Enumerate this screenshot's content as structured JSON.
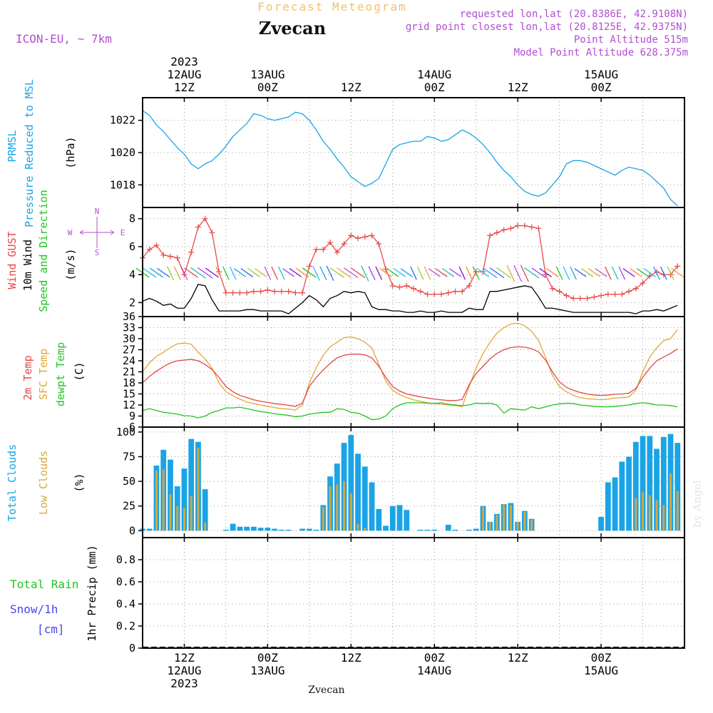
{
  "header": {
    "forecast_title": "Forecast Meteogram",
    "location": "Zvecan",
    "model": "ICON-EU, ~ 7km",
    "requested": "requested lon,lat (20.8386E, 42.9108N)",
    "grid_point": "grid point closest lon,lat (20.8125E, 42.9375N)",
    "point_altitude": "Point Altitude 515m",
    "model_altitude": "Model Point Altitude 628.375m",
    "watermark": "by Angel",
    "footer_location": "Zvecan"
  },
  "colors": {
    "pressure": "#1aa4e6",
    "gust": "#e84848",
    "wind": "#000000",
    "temp2m": "#e04848",
    "sfctemp": "#e0a838",
    "dewpt": "#22c422",
    "total_clouds": "#1aa4e6",
    "low_clouds": "#d4a840",
    "rain": "#22c422",
    "snow": "#4848e8",
    "meta": "#b050d0",
    "forecast_title": "#f0c070"
  },
  "time_axis": {
    "top_labels": [
      {
        "t": 12,
        "lines": [
          "2023",
          "12AUG",
          "12Z"
        ]
      },
      {
        "t": 24,
        "lines": [
          "13AUG",
          "00Z"
        ]
      },
      {
        "t": 36,
        "lines": [
          "12Z"
        ]
      },
      {
        "t": 48,
        "lines": [
          "14AUG",
          "00Z"
        ]
      },
      {
        "t": 60,
        "lines": [
          "12Z"
        ]
      },
      {
        "t": 72,
        "lines": [
          "15AUG",
          "00Z"
        ]
      }
    ],
    "bottom_labels": [
      {
        "t": 12,
        "lines": [
          "12Z",
          "12AUG",
          "2023"
        ]
      },
      {
        "t": 24,
        "lines": [
          "00Z",
          "13AUG"
        ]
      },
      {
        "t": 36,
        "lines": [
          "12Z"
        ]
      },
      {
        "t": 48,
        "lines": [
          "00Z",
          "14AUG"
        ]
      },
      {
        "t": 60,
        "lines": [
          "12Z"
        ]
      },
      {
        "t": 72,
        "lines": [
          "00Z",
          "15AUG"
        ]
      }
    ]
  },
  "chart_data": [
    {
      "type": "line",
      "name": "pressure",
      "label_lines": [
        "PRMSL",
        "Pressure Reduced to MSL"
      ],
      "ylabel": "(hPa)",
      "ylim": [
        1016.6,
        1023.4
      ],
      "yticks": [
        1018,
        1020,
        1022
      ],
      "x_hours_from_12AUG00Z": [
        6,
        7,
        8,
        9,
        10,
        11,
        12,
        13,
        14,
        15,
        16,
        17,
        18,
        19,
        20,
        21,
        22,
        23,
        24,
        25,
        26,
        27,
        28,
        29,
        30,
        31,
        32,
        33,
        34,
        35,
        36,
        37,
        38,
        39,
        40,
        41,
        42,
        43,
        44,
        45,
        46,
        47,
        48,
        49,
        50,
        51,
        52,
        53,
        54,
        55,
        56,
        57,
        58,
        59,
        60,
        61,
        62,
        63,
        64,
        65,
        66,
        67,
        68,
        69,
        70,
        71,
        72,
        73,
        74,
        75,
        76,
        77,
        78,
        79,
        80,
        81,
        82,
        83
      ],
      "values": [
        1022.6,
        1022.3,
        1021.7,
        1021.3,
        1020.8,
        1020.3,
        1019.9,
        1019.3,
        1019.0,
        1019.3,
        1019.5,
        1019.9,
        1020.4,
        1021.0,
        1021.4,
        1021.8,
        1022.4,
        1022.3,
        1022.1,
        1022.0,
        1022.1,
        1022.2,
        1022.5,
        1022.4,
        1022.0,
        1021.4,
        1020.7,
        1020.2,
        1019.6,
        1019.1,
        1018.5,
        1018.2,
        1017.9,
        1018.1,
        1018.4,
        1019.3,
        1020.2,
        1020.5,
        1020.6,
        1020.7,
        1020.7,
        1021.0,
        1020.9,
        1020.7,
        1020.8,
        1021.1,
        1021.4,
        1021.2,
        1020.9,
        1020.5,
        1020.0,
        1019.4,
        1018.9,
        1018.5,
        1018.0,
        1017.6,
        1017.4,
        1017.3,
        1017.5,
        1018.0,
        1018.5,
        1019.3,
        1019.5,
        1019.5,
        1019.4,
        1019.2,
        1019.0,
        1018.8,
        1018.6,
        1018.9,
        1019.1,
        1019.0,
        1018.9,
        1018.6,
        1018.2,
        1017.8,
        1017.1,
        1016.7
      ]
    },
    {
      "type": "line",
      "name": "wind",
      "label_lines": [
        "Wind GUST",
        "10m Wind",
        "Speed and Direction"
      ],
      "ylabel": "(m/s)",
      "compass": [
        "N",
        "W",
        "E",
        "S"
      ],
      "ylim": [
        1.0,
        8.8
      ],
      "yticks": [
        2,
        4,
        6,
        8
      ],
      "gust": [
        5.2,
        5.8,
        6.1,
        5.4,
        5.3,
        5.2,
        4.0,
        5.6,
        7.4,
        8.0,
        7.0,
        4.2,
        2.7,
        2.7,
        2.7,
        2.7,
        2.8,
        2.8,
        2.9,
        2.8,
        2.8,
        2.8,
        2.7,
        2.7,
        4.6,
        5.8,
        5.8,
        6.3,
        5.6,
        6.2,
        6.8,
        6.6,
        6.7,
        6.8,
        6.2,
        4.4,
        3.2,
        3.1,
        3.2,
        3.0,
        2.8,
        2.6,
        2.6,
        2.6,
        2.7,
        2.8,
        2.8,
        3.2,
        4.2,
        4.2,
        6.8,
        7.0,
        7.2,
        7.3,
        7.5,
        7.5,
        7.4,
        7.3,
        4.0,
        3.0,
        2.8,
        2.5,
        2.3,
        2.3,
        2.3,
        2.4,
        2.5,
        2.6,
        2.6,
        2.6,
        2.8,
        3.0,
        3.4,
        3.9,
        4.2,
        4.0,
        4.0,
        4.6
      ],
      "wind": [
        2.1,
        2.3,
        2.1,
        1.8,
        1.9,
        1.6,
        1.6,
        2.3,
        3.3,
        3.2,
        2.2,
        1.4,
        1.4,
        1.4,
        1.4,
        1.5,
        1.5,
        1.4,
        1.4,
        1.4,
        1.4,
        1.2,
        1.6,
        2.0,
        2.5,
        2.2,
        1.7,
        2.3,
        2.5,
        2.8,
        2.7,
        2.8,
        2.7,
        1.7,
        1.5,
        1.5,
        1.4,
        1.4,
        1.3,
        1.3,
        1.4,
        1.3,
        1.3,
        1.4,
        1.3,
        1.3,
        1.3,
        1.6,
        1.5,
        1.5,
        2.8,
        2.8,
        2.9,
        3.0,
        3.1,
        3.2,
        3.1,
        2.4,
        1.6,
        1.6,
        1.5,
        1.4,
        1.3,
        1.3,
        1.3,
        1.3,
        1.3,
        1.3,
        1.3,
        1.3,
        1.3,
        1.2,
        1.4,
        1.4,
        1.5,
        1.4,
        1.6,
        1.8
      ],
      "arrow_colors": [
        "#22c422",
        "#34b8ff",
        "#1aa4e6",
        "#2a66ff",
        "#9ad028",
        "#e0a838",
        "#c050e0",
        "#e04848",
        "#22c4a0",
        "#a040ff",
        "#7a18c8",
        "#ff8a2a"
      ]
    },
    {
      "type": "line",
      "name": "temperature",
      "label_lines": [
        "2m Temp",
        "SFC Temp",
        "dewpt Temp"
      ],
      "ylabel": "(C)",
      "ylim": [
        6,
        36
      ],
      "yticks": [
        6,
        9,
        12,
        15,
        18,
        21,
        24,
        27,
        30,
        33,
        36
      ],
      "temp2m": [
        18.0,
        19.8,
        21.2,
        22.4,
        23.4,
        24.0,
        24.2,
        24.4,
        24.0,
        23.0,
        21.6,
        19.5,
        17.0,
        15.6,
        14.6,
        14.0,
        13.4,
        13.0,
        12.7,
        12.4,
        12.2,
        11.9,
        11.6,
        12.5,
        17.0,
        19.5,
        21.5,
        23.3,
        24.8,
        25.5,
        25.8,
        25.8,
        25.6,
        24.8,
        22.5,
        19.5,
        17.0,
        15.8,
        15.0,
        14.6,
        14.2,
        13.9,
        13.6,
        13.4,
        13.2,
        13.2,
        13.5,
        17.5,
        20.5,
        22.5,
        24.5,
        26.0,
        27.0,
        27.6,
        27.8,
        27.7,
        27.3,
        26.4,
        24.2,
        21.0,
        18.3,
        16.8,
        16.0,
        15.4,
        15.0,
        14.7,
        14.6,
        14.7,
        14.9,
        15.0,
        15.2,
        16.5,
        19.5,
        22.0,
        24.0,
        25.0,
        26.0,
        27.2
      ],
      "sfctemp": [
        21.0,
        23.5,
        25.2,
        26.3,
        27.6,
        28.6,
        28.8,
        28.5,
        26.3,
        24.5,
        22.0,
        18.0,
        15.6,
        14.5,
        13.6,
        12.8,
        12.4,
        12.0,
        11.6,
        11.3,
        11.0,
        10.9,
        10.6,
        12.0,
        18.0,
        22.2,
        25.5,
        27.8,
        29.0,
        30.3,
        30.5,
        30.0,
        29.0,
        27.5,
        23.0,
        18.5,
        16.0,
        14.8,
        14.0,
        13.4,
        13.0,
        12.6,
        12.4,
        12.2,
        12.0,
        11.8,
        11.5,
        17.0,
        22.0,
        26.0,
        29.0,
        31.5,
        33.0,
        34.0,
        34.2,
        33.5,
        32.0,
        29.5,
        25.0,
        20.0,
        17.0,
        15.6,
        14.6,
        14.0,
        13.7,
        13.6,
        13.4,
        13.6,
        13.9,
        14.0,
        14.2,
        16.0,
        21.0,
        25.0,
        27.5,
        29.5,
        30.0,
        32.5
      ],
      "dewpt": [
        10.5,
        11.0,
        10.5,
        10.0,
        9.8,
        9.5,
        9.1,
        9.0,
        8.5,
        9.0,
        10.0,
        10.5,
        11.2,
        11.2,
        11.4,
        11.0,
        10.6,
        10.2,
        10.0,
        9.6,
        9.4,
        9.2,
        8.8,
        9.0,
        9.5,
        9.8,
        10.0,
        10.0,
        11.0,
        10.8,
        10.0,
        9.8,
        9.0,
        8.0,
        8.2,
        9.0,
        11.0,
        12.0,
        12.6,
        12.6,
        12.6,
        12.5,
        12.4,
        12.6,
        12.2,
        12.0,
        11.8,
        12.0,
        12.5,
        12.4,
        12.5,
        12.0,
        9.8,
        11.0,
        10.8,
        10.6,
        11.5,
        11.0,
        11.5,
        12.0,
        12.3,
        12.5,
        12.4,
        12.0,
        11.8,
        11.6,
        11.5,
        11.5,
        11.6,
        11.8,
        12.0,
        12.4,
        12.6,
        12.4,
        12.0,
        12.0,
        11.8,
        11.5
      ]
    },
    {
      "type": "bar",
      "name": "clouds",
      "label_lines": [
        "Total Clouds",
        "Low Clouds"
      ],
      "ylabel": "(%)",
      "ylim": [
        -7,
        105
      ],
      "yticks": [
        0,
        25,
        50,
        75,
        100
      ],
      "total": [
        2,
        2,
        66,
        82,
        72,
        45,
        63,
        93,
        90,
        42,
        0,
        0,
        1,
        7,
        4,
        4,
        4,
        3,
        3,
        2,
        1,
        1,
        0,
        2,
        2,
        1,
        26,
        55,
        68,
        89,
        97,
        78,
        65,
        49,
        22,
        5,
        25,
        26,
        21,
        0,
        1,
        1,
        1,
        0,
        6,
        1,
        0,
        1,
        2,
        25,
        9,
        17,
        27,
        28,
        9,
        20,
        12,
        0,
        0,
        0,
        0,
        0,
        0,
        0,
        0,
        0,
        14,
        49,
        54,
        70,
        75,
        90,
        96,
        96,
        83,
        95,
        98,
        89
      ],
      "low": [
        0,
        0,
        61,
        62,
        37,
        25,
        23,
        35,
        84,
        8,
        0,
        0,
        0,
        0,
        0,
        0,
        0,
        0,
        0,
        0,
        0,
        0,
        0,
        0,
        0,
        0,
        24,
        45,
        47,
        50,
        38,
        7,
        3,
        0,
        0,
        0,
        0,
        0,
        0,
        0,
        0,
        0,
        0,
        0,
        0,
        0,
        0,
        0,
        0,
        24,
        9,
        16,
        27,
        26,
        9,
        19,
        11,
        0,
        0,
        0,
        0,
        0,
        0,
        0,
        0,
        0,
        0,
        0,
        0,
        0,
        0,
        33,
        39,
        36,
        31,
        26,
        58,
        40
      ]
    },
    {
      "type": "bar",
      "name": "precip",
      "label_lines": [
        "Total Rain",
        "Snow/1h",
        "[cm]"
      ],
      "ylabel": "1hr Precip (mm)",
      "ylim": [
        0,
        1.0
      ],
      "yticks": [
        0,
        0.2,
        0.4,
        0.6,
        0.8
      ],
      "ytick_labels": [
        "0",
        "0.2",
        "0.4",
        "0.6",
        "0.8"
      ],
      "rain": [],
      "snow": []
    }
  ]
}
